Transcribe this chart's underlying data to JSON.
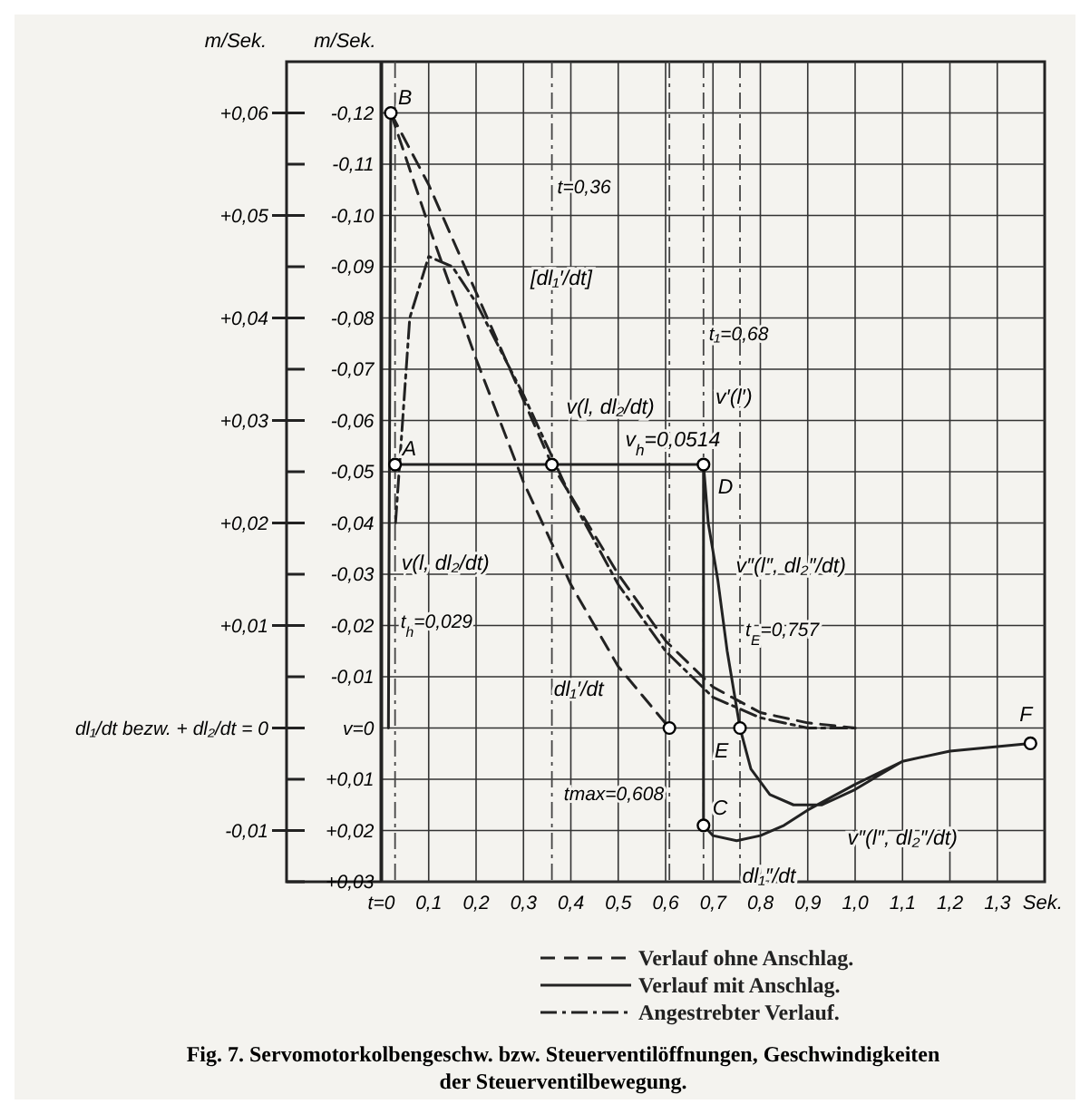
{
  "chart_data": {
    "type": "line",
    "title": "Fig. 7. Servomotorkolbengeschw. bzw. Steuerventilöffnungen, Geschwindigkeiten der Steuerventilbewegung.",
    "xlabel": "Sek.",
    "ylabel": "m/Sek.",
    "y2label": "m/Sek.",
    "xlim": [
      -0.2,
      1.4
    ],
    "xticks": [
      {
        "value": 0,
        "label": "t=0"
      },
      {
        "value": 0.1,
        "label": "0,1"
      },
      {
        "value": 0.2,
        "label": "0,2"
      },
      {
        "value": 0.3,
        "label": "0,3"
      },
      {
        "value": 0.4,
        "label": "0,4"
      },
      {
        "value": 0.5,
        "label": "0,5"
      },
      {
        "value": 0.6,
        "label": "0,6"
      },
      {
        "value": 0.7,
        "label": "0,7"
      },
      {
        "value": 0.8,
        "label": "0,8"
      },
      {
        "value": 0.9,
        "label": "0,9"
      },
      {
        "value": 1.0,
        "label": "1,0"
      },
      {
        "value": 1.1,
        "label": "1,1"
      },
      {
        "value": 1.2,
        "label": "1,2"
      },
      {
        "value": 1.3,
        "label": "1,3"
      }
    ],
    "ylim": [
      0.03,
      -0.13
    ],
    "yticks": [
      {
        "value": -0.12,
        "label": "-0,12"
      },
      {
        "value": -0.11,
        "label": "-0,11"
      },
      {
        "value": -0.1,
        "label": "-0,10"
      },
      {
        "value": -0.09,
        "label": "-0,09"
      },
      {
        "value": -0.08,
        "label": "-0,08"
      },
      {
        "value": -0.07,
        "label": "-0,07"
      },
      {
        "value": -0.06,
        "label": "-0,06"
      },
      {
        "value": -0.05,
        "label": "-0,05"
      },
      {
        "value": -0.04,
        "label": "-0,04"
      },
      {
        "value": -0.03,
        "label": "-0,03"
      },
      {
        "value": -0.02,
        "label": "-0,02"
      },
      {
        "value": -0.01,
        "label": "-0,01"
      },
      {
        "value": 0,
        "label": "v=0"
      },
      {
        "value": 0.01,
        "label": "+0,01"
      },
      {
        "value": 0.02,
        "label": "+0,02"
      },
      {
        "value": 0.03,
        "label": "+0,03"
      }
    ],
    "y2lim": [
      -0.015,
      0.065
    ],
    "y2ticks": [
      {
        "value": 0.06,
        "label": "+0,06"
      },
      {
        "value": 0.05,
        "label": "+0,05"
      },
      {
        "value": 0.04,
        "label": "+0,04"
      },
      {
        "value": 0.03,
        "label": "+0,03"
      },
      {
        "value": 0.02,
        "label": "+0,02"
      },
      {
        "value": 0.01,
        "label": "+0,01"
      },
      {
        "value": 0,
        "label": "dl₁/dt bezw. + dl₂/dt = 0"
      },
      {
        "value": -0.01,
        "label": "-0,01"
      }
    ],
    "grid": true,
    "legend": "bottom",
    "series": [
      {
        "name": "Verlauf ohne Anschlag.",
        "color": "#222222",
        "line_style": "dashed",
        "x": [
          0.02,
          0.1,
          0.2,
          0.3,
          0.4,
          0.5,
          0.608,
          null,
          0.02,
          0.1,
          0.2,
          0.3,
          0.36,
          0.5,
          0.6,
          0.7,
          0.8,
          0.9,
          1.0
        ],
        "values": [
          -0.12,
          -0.098,
          -0.072,
          -0.048,
          -0.028,
          -0.012,
          0,
          null,
          -0.12,
          -0.106,
          -0.085,
          -0.064,
          -0.0514,
          -0.03,
          -0.017,
          -0.008,
          -0.003,
          -0.001,
          0
        ]
      },
      {
        "name": "Verlauf mit Anschlag.",
        "color": "#222222",
        "line_style": "solid",
        "x": [
          0.02,
          0.015,
          null,
          0.029,
          0.68,
          0.68,
          0.7,
          0.75,
          0.8,
          0.85,
          0.9,
          1.0,
          1.1,
          1.2,
          1.37,
          null,
          0.68,
          0.69,
          0.71,
          0.73,
          0.757,
          0.78,
          0.82,
          0.87,
          0.93,
          1.0,
          1.1
        ],
        "values": [
          -0.12,
          0,
          null,
          -0.0514,
          -0.0514,
          0.019,
          0.021,
          0.022,
          0.021,
          0.019,
          0.016,
          0.011,
          0.0065,
          0.0045,
          0.003,
          null,
          -0.0514,
          -0.04,
          -0.029,
          -0.015,
          0,
          0.008,
          0.013,
          0.015,
          0.015,
          0.012,
          0.0065
        ]
      },
      {
        "name": "Angestrebter Verlauf.",
        "color": "#222222",
        "line_style": "dashdot",
        "x": [
          0.03,
          0.06,
          0.1,
          0.15,
          0.2,
          0.3,
          0.4,
          0.5,
          0.6,
          0.7,
          0.8,
          0.9,
          1.0
        ],
        "values": [
          -0.04,
          -0.08,
          -0.092,
          -0.09,
          -0.083,
          -0.065,
          -0.045,
          -0.028,
          -0.015,
          -0.006,
          -0.002,
          0,
          0
        ]
      },
      {
        "type": "scatter",
        "marker": "circle",
        "color": "#000000",
        "x": [
          0.02,
          0.029,
          0.36,
          0.68,
          0.68,
          0.608,
          0.757,
          1.37
        ],
        "values": [
          -0.12,
          -0.0514,
          -0.0514,
          -0.0514,
          0.019,
          0,
          0,
          0.003
        ]
      }
    ],
    "ref_lines": [
      {
        "axis": "x",
        "value": 0.029,
        "label": "t$_{h}$=0,029",
        "line_style": "dashdot"
      },
      {
        "axis": "x",
        "value": 0.36,
        "label": "t=0,36",
        "line_style": "dashdot"
      },
      {
        "axis": "x",
        "value": 0.68,
        "label": "t₁=0,68",
        "line_style": "dashdot"
      },
      {
        "axis": "x",
        "value": 0.757,
        "label": "t$_{E}$=0,757",
        "line_style": "dashdot"
      },
      {
        "axis": "x",
        "value": 0.608,
        "label": "tmax=0,608",
        "line_style": "dashdot"
      }
    ],
    "annotations": [
      {
        "text": "B",
        "x": 0.02,
        "y": -0.12
      },
      {
        "text": "A",
        "x": 0.029,
        "y": -0.0514
      },
      {
        "text": "D",
        "x": 0.68,
        "y": -0.0514
      },
      {
        "text": "C",
        "x": 0.68,
        "y": 0.019
      },
      {
        "text": "E",
        "x": 0.757,
        "y": 0
      },
      {
        "text": "F",
        "x": 1.37,
        "y": 0.003
      },
      {
        "text": "v$_{h}$=0,0514",
        "x": 0.4,
        "y": -0.0514
      },
      {
        "text": "[dl₁′/dt]",
        "x": 0.2,
        "y": -0.085
      },
      {
        "text": "v(l, dl₂/dt)",
        "x": 0.36,
        "y": -0.0514
      },
      {
        "text": "v(l, dl₂/dt)",
        "x": 0.035,
        "y": -0.033
      },
      {
        "text": "dl₁′/dt",
        "x": 0.5,
        "y": -0.012
      },
      {
        "text": "v′(l′)",
        "x": 0.69,
        "y": -0.058
      },
      {
        "text": "v″(l″, dl₂″/dt)",
        "x": 0.71,
        "y": -0.029
      },
      {
        "text": "v″(l″, dl₂″/dt)",
        "x": 0.93,
        "y": 0.015
      },
      {
        "text": "dl₁″/dt",
        "x": 0.8,
        "y": 0.021
      }
    ]
  }
}
